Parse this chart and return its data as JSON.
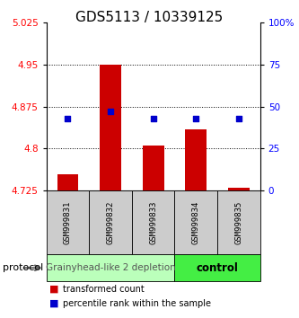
{
  "title": "GDS5113 / 10339125",
  "samples": [
    "GSM999831",
    "GSM999832",
    "GSM999833",
    "GSM999834",
    "GSM999835"
  ],
  "transformed_counts": [
    4.755,
    4.95,
    4.805,
    4.835,
    4.73
  ],
  "percentile_ranks": [
    43,
    47,
    43,
    43,
    43
  ],
  "ylim_left": [
    4.725,
    5.025
  ],
  "ylim_right": [
    0,
    100
  ],
  "yticks_left": [
    4.725,
    4.8,
    4.875,
    4.95,
    5.025
  ],
  "yticks_right": [
    0,
    25,
    50,
    75,
    100
  ],
  "bar_color": "#cc0000",
  "dot_color": "#0000cc",
  "bar_bottom": 4.725,
  "group0_color": "#bbffbb",
  "group1_color": "#44ee44",
  "group0_label": "Grainyhead-like 2 depletion",
  "group1_label": "control",
  "legend_red": "transformed count",
  "legend_blue": "percentile rank within the sample",
  "protocol_label": "protocol",
  "title_fontsize": 11,
  "tick_fontsize": 7.5,
  "sample_fontsize": 6.5,
  "group_fontsize": 7.5
}
